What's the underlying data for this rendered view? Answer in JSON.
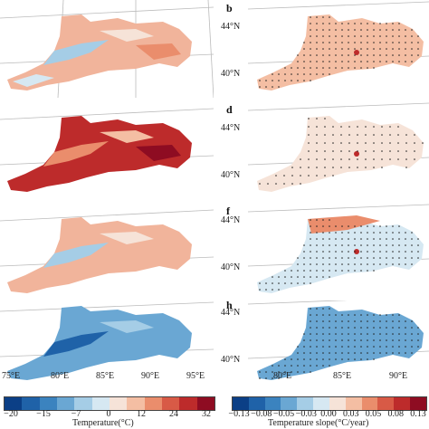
{
  "panels": {
    "b": {
      "letter": "b"
    },
    "d": {
      "letter": "d"
    },
    "f": {
      "letter": "f"
    },
    "h": {
      "letter": "h"
    }
  },
  "lat_labels": [
    "44°N",
    "40°N"
  ],
  "lon_labels": [
    "75°E",
    "80°E",
    "85°E",
    "90°E",
    "95°E"
  ],
  "lon_labels_right": [
    "80°E",
    "85°E",
    "90°E"
  ],
  "colorbar_left": {
    "title": "Temperature(°C)",
    "ticks": [
      "−20",
      "−15",
      "−7",
      "0",
      "12",
      "24",
      "32"
    ],
    "colors": [
      "#0b3f86",
      "#1f62a8",
      "#3b83bf",
      "#6aa7d3",
      "#a5cde6",
      "#d6e8f2",
      "#f6e3d8",
      "#f4bea3",
      "#ea8d6c",
      "#d85a46",
      "#bd2b2b",
      "#8e0c22"
    ]
  },
  "colorbar_right": {
    "title": "Temperature slope(°C/year)",
    "ticks": [
      "−0.13",
      "−0.08",
      "−0.05",
      "−0.03",
      "0.00",
      "0.03",
      "0.05",
      "0.08",
      "0.13"
    ],
    "colors": [
      "#0b3f86",
      "#1f62a8",
      "#3b83bf",
      "#6aa7d3",
      "#a5cde6",
      "#d6e8f2",
      "#f6e3d8",
      "#f4bea3",
      "#ea8d6c",
      "#d85a46",
      "#bd2b2b",
      "#8e0c22"
    ]
  }
}
